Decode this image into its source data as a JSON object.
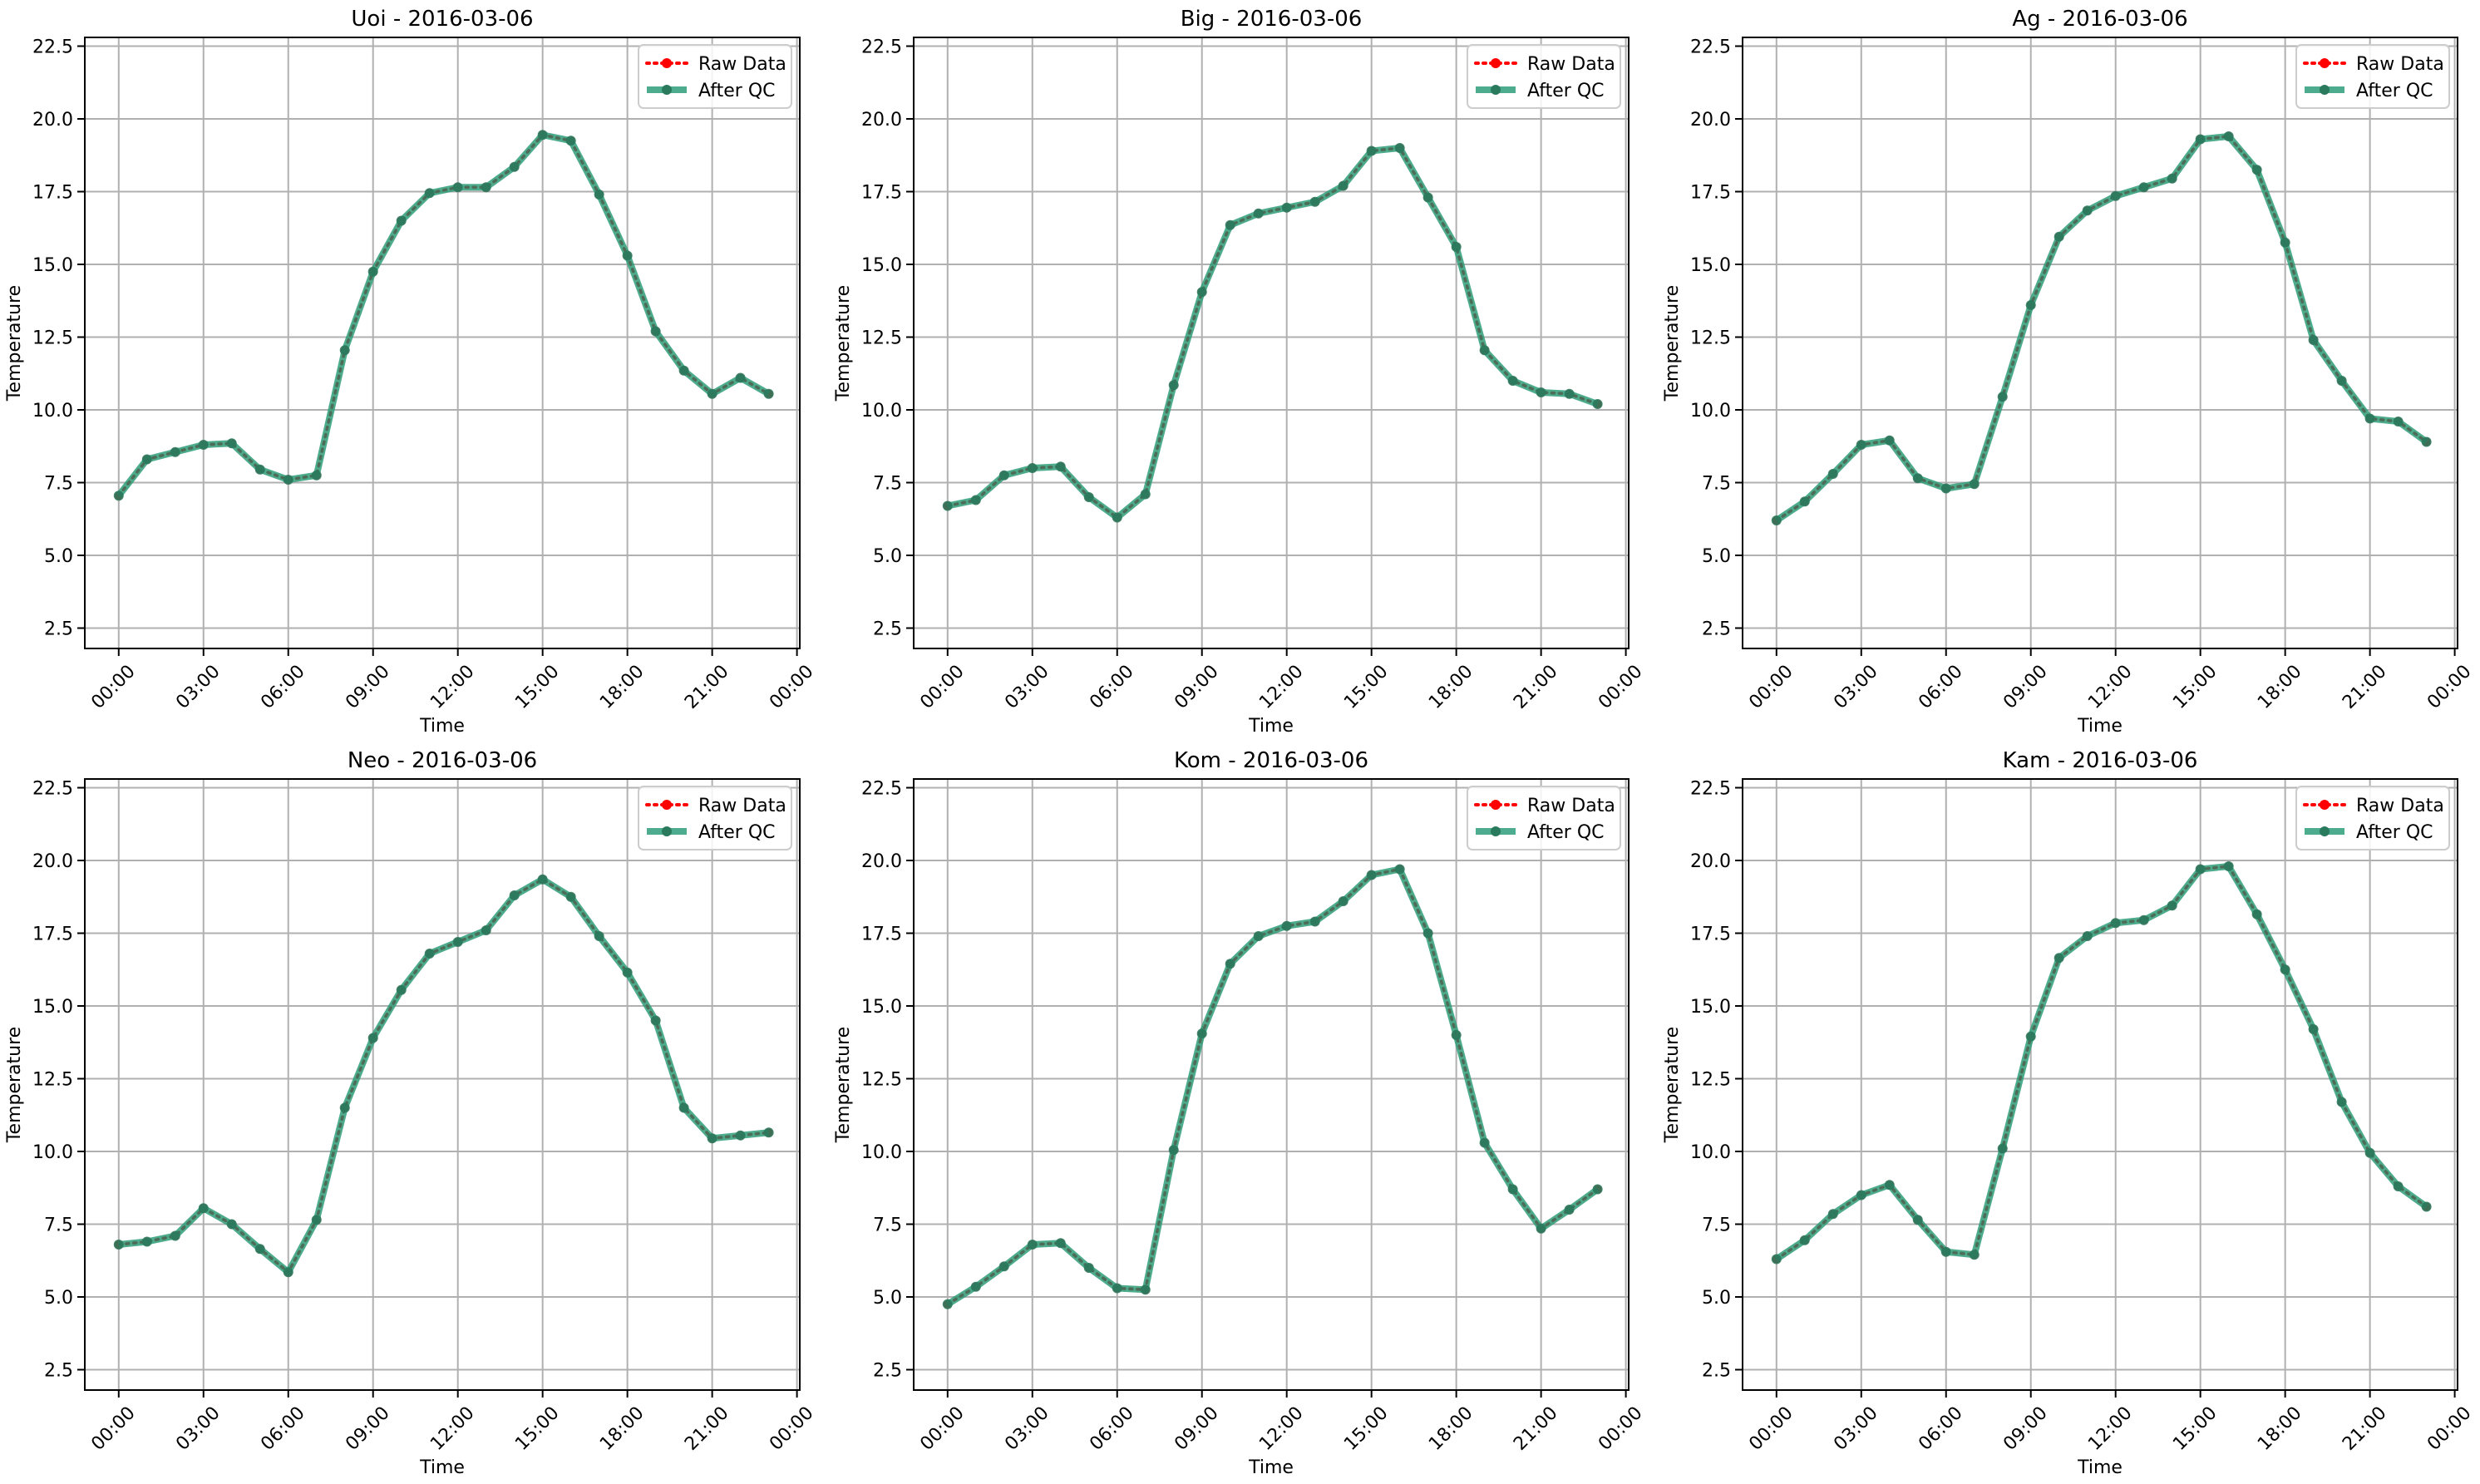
{
  "figure": {
    "colors": {
      "raw": "#ff0000",
      "qc": "#2e9d79",
      "grid": "#b0b0b0",
      "axis": "#000000"
    }
  },
  "chart_data": [
    {
      "type": "line",
      "title": "Uoi - 2016-03-06",
      "xlabel": "Time",
      "ylabel": "Temperature",
      "x": [
        0,
        1,
        2,
        3,
        4,
        5,
        6,
        7,
        8,
        9,
        10,
        11,
        12,
        13,
        14,
        15,
        16,
        17,
        18,
        19,
        20,
        21,
        22,
        23
      ],
      "xticks": [
        "00:00",
        "03:00",
        "06:00",
        "09:00",
        "12:00",
        "15:00",
        "18:00",
        "21:00",
        "00:00"
      ],
      "yticks": [
        "2.5",
        "5.0",
        "7.5",
        "10.0",
        "12.5",
        "15.0",
        "17.5",
        "20.0",
        "22.5"
      ],
      "ylim": [
        1.8,
        22.8
      ],
      "xlim": [
        -1.2,
        24.1
      ],
      "grid": true,
      "legend_position": "upper right",
      "series": [
        {
          "name": "Raw Data",
          "style": "dotted-markers",
          "values": [
            7.05,
            8.3,
            8.55,
            8.8,
            8.85,
            7.95,
            7.6,
            7.75,
            12.05,
            14.75,
            16.5,
            17.45,
            17.65,
            17.65,
            18.35,
            19.45,
            19.25,
            17.4,
            15.3,
            12.7,
            11.35,
            10.55,
            11.1,
            10.55
          ]
        },
        {
          "name": "After QC",
          "style": "solid-markers",
          "values": [
            7.05,
            8.3,
            8.55,
            8.8,
            8.85,
            7.95,
            7.6,
            7.75,
            12.05,
            14.75,
            16.5,
            17.45,
            17.65,
            17.65,
            18.35,
            19.45,
            19.25,
            17.4,
            15.3,
            12.7,
            11.35,
            10.55,
            11.1,
            10.55
          ]
        }
      ]
    },
    {
      "type": "line",
      "title": "Big - 2016-03-06",
      "xlabel": "Time",
      "ylabel": "Temperature",
      "x": [
        0,
        1,
        2,
        3,
        4,
        5,
        6,
        7,
        8,
        9,
        10,
        11,
        12,
        13,
        14,
        15,
        16,
        17,
        18,
        19,
        20,
        21,
        22,
        23
      ],
      "xticks": [
        "00:00",
        "03:00",
        "06:00",
        "09:00",
        "12:00",
        "15:00",
        "18:00",
        "21:00",
        "00:00"
      ],
      "yticks": [
        "2.5",
        "5.0",
        "7.5",
        "10.0",
        "12.5",
        "15.0",
        "17.5",
        "20.0",
        "22.5"
      ],
      "ylim": [
        1.8,
        22.8
      ],
      "xlim": [
        -1.2,
        24.1
      ],
      "grid": true,
      "legend_position": "upper right",
      "series": [
        {
          "name": "Raw Data",
          "style": "dotted-markers",
          "values": [
            6.7,
            6.9,
            7.75,
            8.0,
            8.05,
            7.0,
            6.3,
            7.1,
            10.85,
            14.05,
            16.35,
            16.75,
            16.95,
            17.15,
            17.7,
            18.9,
            19.0,
            17.3,
            15.6,
            12.05,
            11.0,
            10.6,
            10.55,
            10.2
          ]
        },
        {
          "name": "After QC",
          "style": "solid-markers",
          "values": [
            6.7,
            6.9,
            7.75,
            8.0,
            8.05,
            7.0,
            6.3,
            7.1,
            10.85,
            14.05,
            16.35,
            16.75,
            16.95,
            17.15,
            17.7,
            18.9,
            19.0,
            17.3,
            15.6,
            12.05,
            11.0,
            10.6,
            10.55,
            10.2
          ]
        }
      ]
    },
    {
      "type": "line",
      "title": "Ag - 2016-03-06",
      "xlabel": "Time",
      "ylabel": "Temperature",
      "x": [
        0,
        1,
        2,
        3,
        4,
        5,
        6,
        7,
        8,
        9,
        10,
        11,
        12,
        13,
        14,
        15,
        16,
        17,
        18,
        19,
        20,
        21,
        22,
        23
      ],
      "xticks": [
        "00:00",
        "03:00",
        "06:00",
        "09:00",
        "12:00",
        "15:00",
        "18:00",
        "21:00",
        "00:00"
      ],
      "yticks": [
        "2.5",
        "5.0",
        "7.5",
        "10.0",
        "12.5",
        "15.0",
        "17.5",
        "20.0",
        "22.5"
      ],
      "ylim": [
        1.8,
        22.8
      ],
      "xlim": [
        -1.2,
        24.1
      ],
      "grid": true,
      "legend_position": "upper right",
      "series": [
        {
          "name": "Raw Data",
          "style": "dotted-markers",
          "values": [
            6.2,
            6.85,
            7.8,
            8.8,
            8.95,
            7.65,
            7.3,
            7.45,
            10.45,
            13.6,
            15.95,
            16.85,
            17.35,
            17.65,
            17.95,
            19.3,
            19.4,
            18.25,
            15.75,
            12.4,
            11.0,
            9.7,
            9.6,
            8.9
          ]
        },
        {
          "name": "After QC",
          "style": "solid-markers",
          "values": [
            6.2,
            6.85,
            7.8,
            8.8,
            8.95,
            7.65,
            7.3,
            7.45,
            10.45,
            13.6,
            15.95,
            16.85,
            17.35,
            17.65,
            17.95,
            19.3,
            19.4,
            18.25,
            15.75,
            12.4,
            11.0,
            9.7,
            9.6,
            8.9
          ]
        }
      ]
    },
    {
      "type": "line",
      "title": "Neo - 2016-03-06",
      "xlabel": "Time",
      "ylabel": "Temperature",
      "x": [
        0,
        1,
        2,
        3,
        4,
        5,
        6,
        7,
        8,
        9,
        10,
        11,
        12,
        13,
        14,
        15,
        16,
        17,
        18,
        19,
        20,
        21,
        22,
        23
      ],
      "xticks": [
        "00:00",
        "03:00",
        "06:00",
        "09:00",
        "12:00",
        "15:00",
        "18:00",
        "21:00",
        "00:00"
      ],
      "yticks": [
        "2.5",
        "5.0",
        "7.5",
        "10.0",
        "12.5",
        "15.0",
        "17.5",
        "20.0",
        "22.5"
      ],
      "ylim": [
        1.8,
        22.8
      ],
      "xlim": [
        -1.2,
        24.1
      ],
      "grid": true,
      "legend_position": "upper right",
      "series": [
        {
          "name": "Raw Data",
          "style": "dotted-markers",
          "values": [
            6.8,
            6.9,
            7.1,
            8.05,
            7.5,
            6.65,
            5.85,
            7.65,
            11.5,
            13.9,
            15.55,
            16.8,
            17.2,
            17.6,
            18.8,
            19.35,
            18.75,
            17.4,
            16.15,
            14.5,
            11.5,
            10.45,
            10.55,
            10.65
          ]
        },
        {
          "name": "After QC",
          "style": "solid-markers",
          "values": [
            6.8,
            6.9,
            7.1,
            8.05,
            7.5,
            6.65,
            5.85,
            7.65,
            11.5,
            13.9,
            15.55,
            16.8,
            17.2,
            17.6,
            18.8,
            19.35,
            18.75,
            17.4,
            16.15,
            14.5,
            11.5,
            10.45,
            10.55,
            10.65
          ]
        }
      ]
    },
    {
      "type": "line",
      "title": "Kom - 2016-03-06",
      "xlabel": "Time",
      "ylabel": "Temperature",
      "x": [
        0,
        1,
        2,
        3,
        4,
        5,
        6,
        7,
        8,
        9,
        10,
        11,
        12,
        13,
        14,
        15,
        16,
        17,
        18,
        19,
        20,
        21,
        22,
        23
      ],
      "xticks": [
        "00:00",
        "03:00",
        "06:00",
        "09:00",
        "12:00",
        "15:00",
        "18:00",
        "21:00",
        "00:00"
      ],
      "yticks": [
        "2.5",
        "5.0",
        "7.5",
        "10.0",
        "12.5",
        "15.0",
        "17.5",
        "20.0",
        "22.5"
      ],
      "ylim": [
        1.8,
        22.8
      ],
      "xlim": [
        -1.2,
        24.1
      ],
      "grid": true,
      "legend_position": "upper right",
      "series": [
        {
          "name": "Raw Data",
          "style": "dotted-markers",
          "values": [
            4.75,
            5.35,
            6.05,
            6.8,
            6.85,
            6.0,
            5.3,
            5.25,
            10.05,
            14.05,
            16.45,
            17.4,
            17.75,
            17.9,
            18.6,
            19.5,
            19.7,
            17.5,
            14.0,
            10.3,
            8.7,
            7.35,
            8.0,
            8.7
          ]
        },
        {
          "name": "After QC",
          "style": "solid-markers",
          "values": [
            4.75,
            5.35,
            6.05,
            6.8,
            6.85,
            6.0,
            5.3,
            5.25,
            10.05,
            14.05,
            16.45,
            17.4,
            17.75,
            17.9,
            18.6,
            19.5,
            19.7,
            17.5,
            14.0,
            10.3,
            8.7,
            7.35,
            8.0,
            8.7
          ]
        }
      ]
    },
    {
      "type": "line",
      "title": "Kam - 2016-03-06",
      "xlabel": "Time",
      "ylabel": "Temperature",
      "x": [
        0,
        1,
        2,
        3,
        4,
        5,
        6,
        7,
        8,
        9,
        10,
        11,
        12,
        13,
        14,
        15,
        16,
        17,
        18,
        19,
        20,
        21,
        22,
        23
      ],
      "xticks": [
        "00:00",
        "03:00",
        "06:00",
        "09:00",
        "12:00",
        "15:00",
        "18:00",
        "21:00",
        "00:00"
      ],
      "yticks": [
        "2.5",
        "5.0",
        "7.5",
        "10.0",
        "12.5",
        "15.0",
        "17.5",
        "20.0",
        "22.5"
      ],
      "ylim": [
        1.8,
        22.8
      ],
      "xlim": [
        -1.2,
        24.1
      ],
      "grid": true,
      "legend_position": "upper right",
      "series": [
        {
          "name": "Raw Data",
          "style": "dotted-markers",
          "values": [
            6.3,
            6.95,
            7.85,
            8.5,
            8.85,
            7.65,
            6.55,
            6.45,
            10.1,
            13.95,
            16.65,
            17.4,
            17.85,
            17.95,
            18.45,
            19.7,
            19.8,
            18.15,
            16.25,
            14.2,
            11.7,
            9.95,
            8.8,
            8.1
          ]
        },
        {
          "name": "After QC",
          "style": "solid-markers",
          "values": [
            6.3,
            6.95,
            7.85,
            8.5,
            8.85,
            7.65,
            6.55,
            6.45,
            10.1,
            13.95,
            16.65,
            17.4,
            17.85,
            17.95,
            18.45,
            19.7,
            19.8,
            18.15,
            16.25,
            14.2,
            11.7,
            9.95,
            8.8,
            8.1
          ]
        }
      ]
    }
  ]
}
